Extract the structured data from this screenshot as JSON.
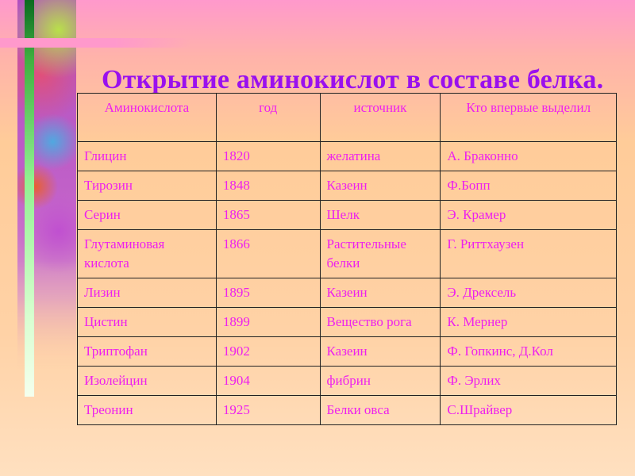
{
  "title": "Открытие аминокислот в составе белка.",
  "table": {
    "headers": [
      "Аминокислота",
      "год",
      "источник",
      "Кто впервые выделил"
    ],
    "rows": [
      [
        "Глицин",
        "1820",
        "желатина",
        "А. Браконно"
      ],
      [
        "Тирозин",
        "1848",
        "Казеин",
        "Ф.Бопп"
      ],
      [
        "Серин",
        "1865",
        "Шелк",
        "Э. Крамер"
      ],
      [
        "Глутаминовая кислота",
        "1866",
        "Растительные белки",
        "Г. Риттхаузен"
      ],
      [
        "Лизин",
        "1895",
        "Казеин",
        "Э. Дрексель"
      ],
      [
        "Цистин",
        "1899",
        "Вещество рога",
        "К. Мернер"
      ],
      [
        "Триптофан",
        "1902",
        "Казеин",
        "Ф. Гопкинс, Д.Кол"
      ],
      [
        "Изолейцин",
        "1904",
        "фибрин",
        "Ф. Эрлих"
      ],
      [
        "Треонин",
        "1925",
        "Белки овса",
        "С.Шрайвер"
      ]
    ]
  },
  "colors": {
    "title": "#9a10ee",
    "text": "#ee20ee",
    "background_top": "#ff99cc",
    "background": "#ffcc99"
  }
}
